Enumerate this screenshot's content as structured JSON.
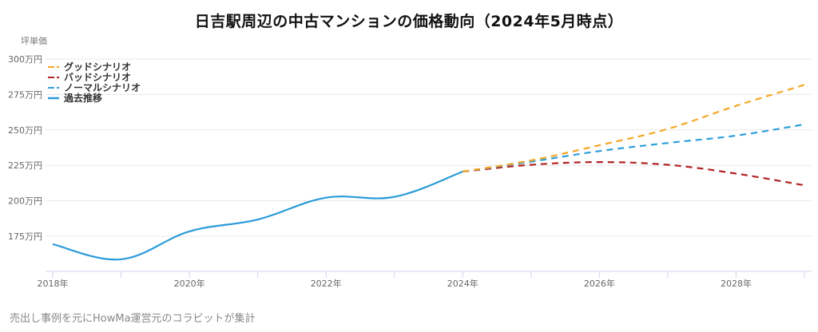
{
  "chart_data": {
    "type": "line",
    "title": "日吉駅周辺の中古マンションの価格動向（2024年5月時点）",
    "xlabel": "",
    "ylabel": "坪単価",
    "y_unit": "万円",
    "ylim": [
      150,
      300
    ],
    "yticks": [
      175,
      200,
      225,
      250,
      275,
      300
    ],
    "ytick_labels": [
      "175万円",
      "200万円",
      "225万円",
      "250万円",
      "275万円",
      "300万円"
    ],
    "xlim": [
      2018,
      2029
    ],
    "xticks": [
      2018,
      2020,
      2022,
      2024,
      2026,
      2028
    ],
    "xtick_labels": [
      "2018年",
      "2020年",
      "2022年",
      "2024年",
      "2026年",
      "2028年"
    ],
    "grid": true,
    "legend_position": "top-left",
    "series": [
      {
        "name": "グッドシナリオ",
        "style": "dashed",
        "color": "#F5A623",
        "x": [
          2024,
          2025,
          2026,
          2027,
          2028,
          2029
        ],
        "values": [
          220.6,
          228.5,
          239.2,
          250.7,
          267.0,
          281.8
        ]
      },
      {
        "name": "バッドシナリオ",
        "style": "dashed",
        "color": "#B22222",
        "x": [
          2024,
          2025,
          2026,
          2027,
          2028,
          2029
        ],
        "values": [
          220.6,
          225.4,
          227.3,
          225.4,
          219.2,
          210.9
        ]
      },
      {
        "name": "ノーマルシナリオ",
        "style": "dashed",
        "color": "#2E9FD9",
        "x": [
          2024,
          2025,
          2026,
          2027,
          2028,
          2029
        ],
        "values": [
          220.6,
          227.6,
          235.1,
          240.8,
          246.0,
          253.9
        ]
      },
      {
        "name": "過去推移",
        "style": "solid",
        "color": "#2A9BD8",
        "x": [
          2018,
          2019,
          2020,
          2021,
          2022,
          2023,
          2024
        ],
        "values": [
          169.4,
          158.7,
          178.4,
          186.8,
          202.2,
          202.8,
          220.6
        ]
      }
    ]
  },
  "header": {
    "title": "日吉駅周辺の中古マンションの価格動向（2024年5月時点）",
    "y_axis_label": "坪単価"
  },
  "footer": {
    "note": "売出し事例を元にHowMa運営元のコラビットが集計"
  }
}
